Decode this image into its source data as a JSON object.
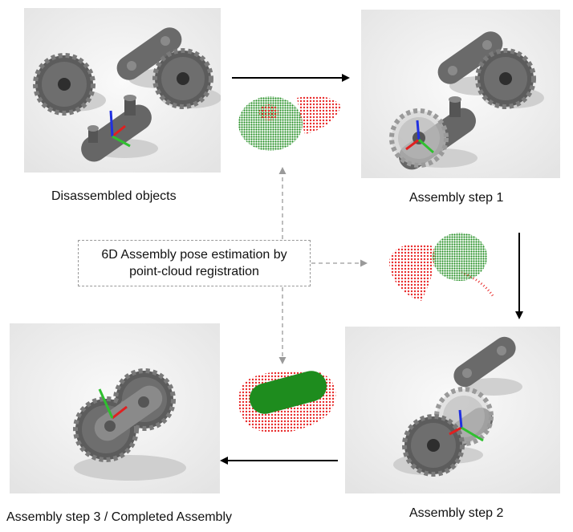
{
  "captions": {
    "disassembled": "Disassembled objects",
    "step1": "Assembly step 1",
    "step2": "Assembly step 2",
    "step3": "Assembly step 3 / Completed Assembly"
  },
  "center_label": {
    "line1": "6D Assembly pose estimation by",
    "line2": "point-cloud registration"
  },
  "colors": {
    "cloud_green": "#1e8c1e",
    "cloud_red": "#e82a2a",
    "part_gray": "#6e6e6e",
    "axis_red": "#e02020",
    "axis_green": "#30c030",
    "axis_blue": "#2030e0"
  }
}
